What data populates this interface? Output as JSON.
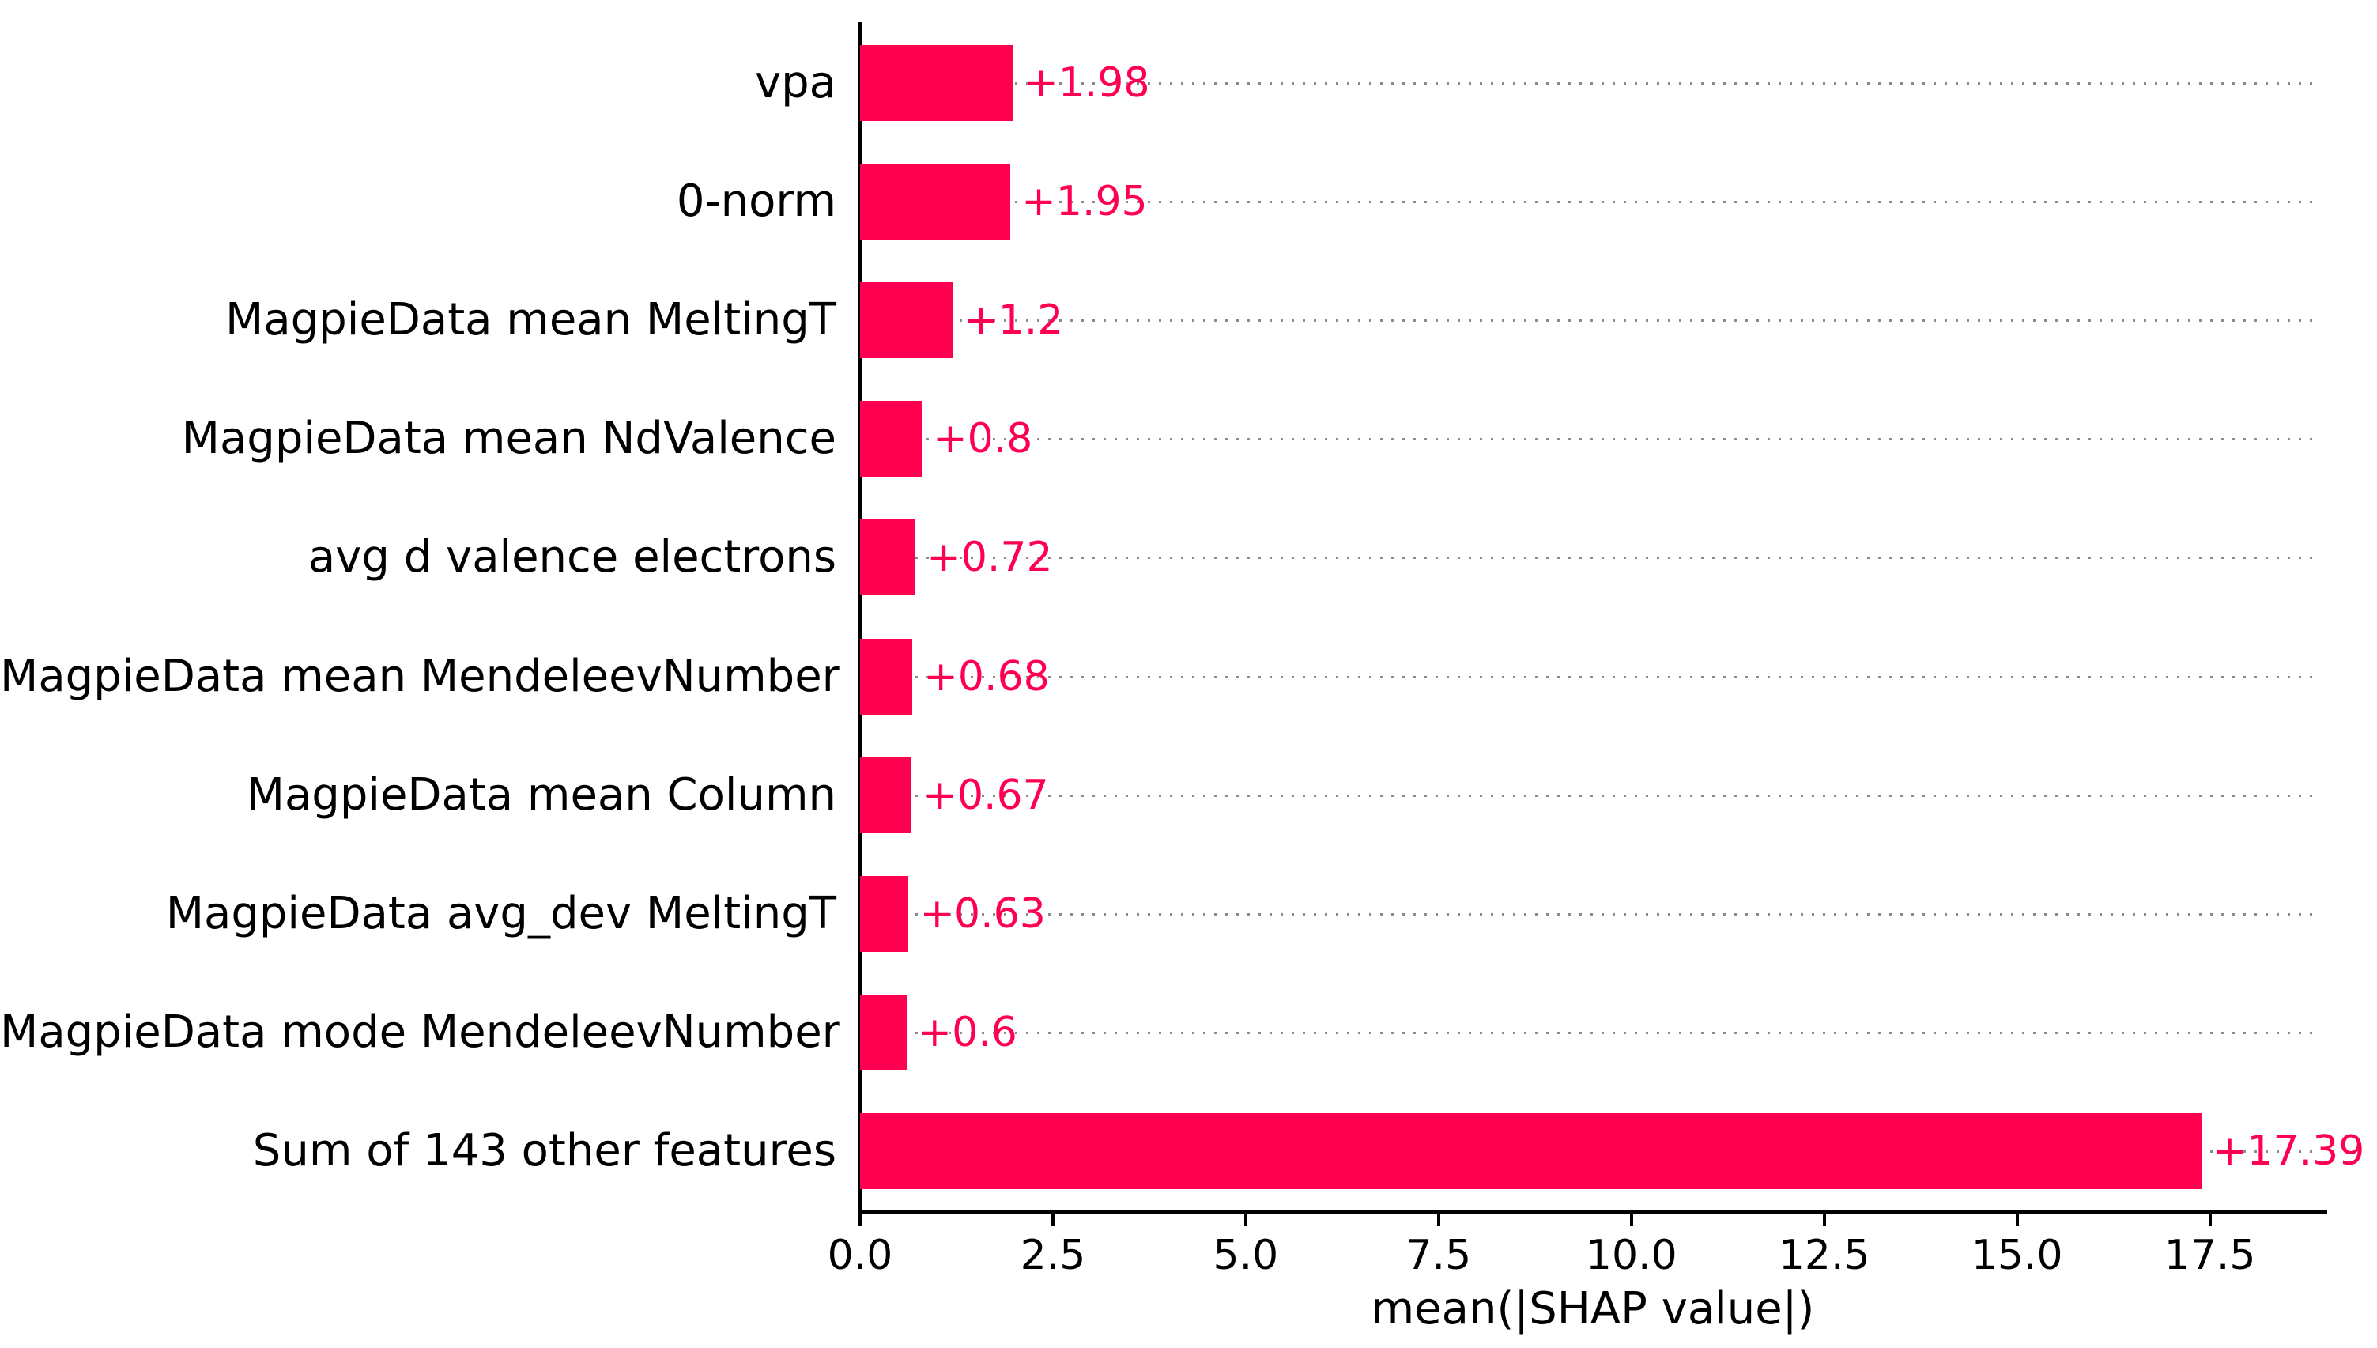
{
  "figure": {
    "background_color": "#ffffff"
  },
  "chart_data": {
    "type": "bar",
    "orientation": "horizontal",
    "title": "",
    "xlabel": "mean(|SHAP value|)",
    "ylabel": "",
    "categories": [
      "vpa",
      "0-norm",
      "MagpieData mean MeltingT",
      "MagpieData mean NdValence",
      "avg d valence electrons",
      "MagpieData mean MendeleevNumber",
      "MagpieData mean Column",
      "MagpieData avg_dev MeltingT",
      "MagpieData mode MendeleevNumber",
      "Sum of 143 other features"
    ],
    "values": [
      1.98,
      1.95,
      1.2,
      0.8,
      0.72,
      0.68,
      0.67,
      0.63,
      0.6,
      17.39
    ],
    "value_labels": [
      "+1.98",
      "+1.95",
      "+1.2",
      "+0.8",
      "+0.72",
      "+0.68",
      "+0.67",
      "+0.63",
      "+0.6",
      "+17.39"
    ],
    "xlim": [
      0,
      19
    ],
    "x_ticks": [
      0.0,
      2.5,
      5.0,
      7.5,
      10.0,
      12.5,
      15.0,
      17.5
    ],
    "x_tick_labels": [
      "0.0",
      "2.5",
      "5.0",
      "7.5",
      "10.0",
      "12.5",
      "15.0",
      "17.5"
    ],
    "grid": "horizontal dotted lines at each bar, full plot width",
    "legend": "none",
    "bar_color": "#ff0051",
    "value_label_color": "#ff0051",
    "gridline_color": "#8a8a8a",
    "axis_color": "#000000",
    "text_color": "#000000"
  }
}
